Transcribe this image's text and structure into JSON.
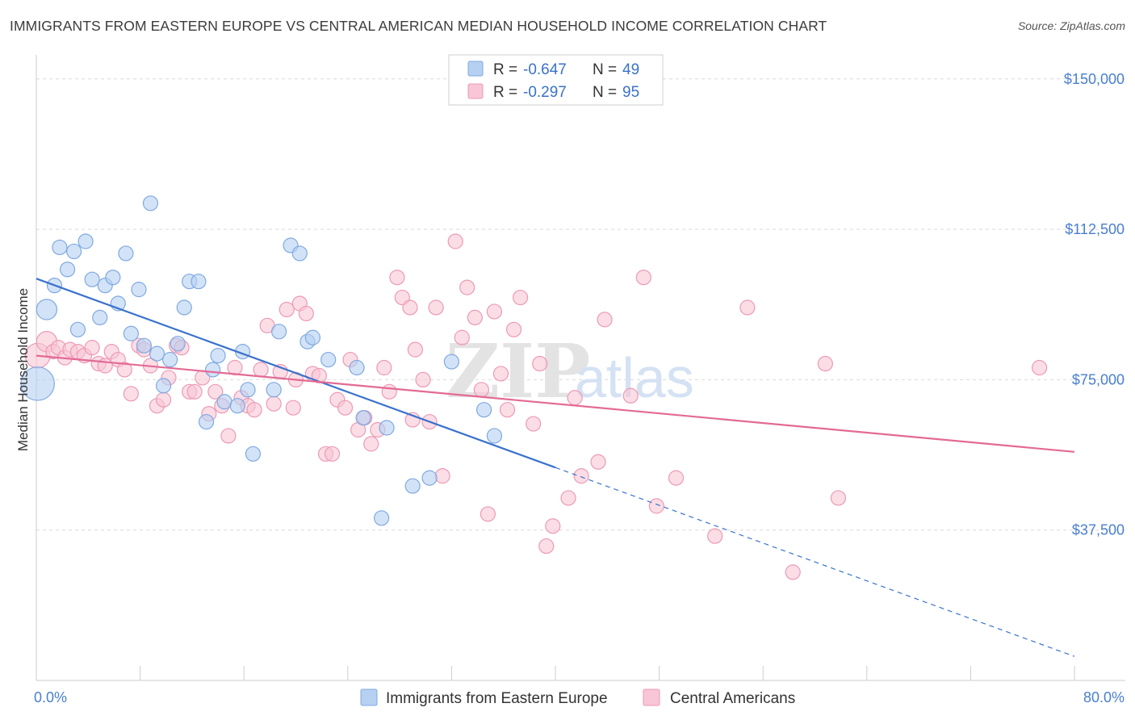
{
  "title": "IMMIGRANTS FROM EASTERN EUROPE VS CENTRAL AMERICAN MEDIAN HOUSEHOLD INCOME CORRELATION CHART",
  "source": "Source: ZipAtlas.com",
  "watermark": {
    "zip": "ZIP",
    "atlas": "atlas"
  },
  "colors": {
    "blue_fill": "#b6d0f2",
    "blue_stroke": "#7fa9e0",
    "blue_line": "#3a72cc",
    "pink_fill": "#f8c6d6",
    "pink_stroke": "#ec9ab5",
    "pink_line": "#e36a95",
    "grid": "#d9d9d9",
    "axis_label": "#4a7fd0"
  },
  "legend": {
    "rows": [
      {
        "r_label": "R =",
        "r_value": "-0.647",
        "n_label": "N =",
        "n_value": "49"
      },
      {
        "r_label": "R =",
        "r_value": "-0.297",
        "n_label": "N =",
        "n_value": "95"
      }
    ]
  },
  "chart_data": {
    "type": "scatter",
    "title": "IMMIGRANTS FROM EASTERN EUROPE VS CENTRAL AMERICAN MEDIAN HOUSEHOLD INCOME CORRELATION CHART",
    "xlabel": "",
    "ylabel": "Median Household Income",
    "xlim": [
      0,
      80
    ],
    "ylim": [
      0,
      156000
    ],
    "x_tick_labels": [
      "0.0%",
      "80.0%"
    ],
    "x_tick_positions": [
      0,
      8,
      16,
      24,
      32,
      40,
      48,
      56,
      64,
      72,
      80
    ],
    "y_ticks": [
      37500,
      75000,
      112500,
      150000
    ],
    "y_tick_labels": [
      "$37,500",
      "$75,000",
      "$112,500",
      "$150,000"
    ],
    "grid": true,
    "series": [
      {
        "name": "Immigrants from Eastern Europe",
        "color": "blue",
        "points": [
          [
            0.1,
            74000,
            2.3
          ],
          [
            0.8,
            92500,
            1.4
          ],
          [
            1.4,
            98500,
            1.0
          ],
          [
            1.8,
            108000,
            1.0
          ],
          [
            2.4,
            102500,
            1.0
          ],
          [
            2.9,
            107000,
            1.0
          ],
          [
            3.2,
            87500,
            1.0
          ],
          [
            3.8,
            109500,
            1.0
          ],
          [
            4.3,
            100000,
            1.0
          ],
          [
            4.9,
            90500,
            1.0
          ],
          [
            5.3,
            98500,
            1.0
          ],
          [
            5.9,
            100500,
            1.0
          ],
          [
            6.3,
            94000,
            1.0
          ],
          [
            6.9,
            106500,
            1.0
          ],
          [
            7.3,
            86500,
            1.0
          ],
          [
            7.9,
            97500,
            1.0
          ],
          [
            8.3,
            83500,
            1.0
          ],
          [
            8.8,
            119000,
            1.0
          ],
          [
            9.3,
            81500,
            1.0
          ],
          [
            9.8,
            73500,
            1.0
          ],
          [
            10.3,
            80000,
            1.0
          ],
          [
            10.9,
            84000,
            1.0
          ],
          [
            11.4,
            93000,
            1.0
          ],
          [
            11.8,
            99500,
            1.0
          ],
          [
            12.5,
            99500,
            1.0
          ],
          [
            13.1,
            64500,
            1.0
          ],
          [
            13.6,
            77500,
            1.0
          ],
          [
            14.0,
            81000,
            1.0
          ],
          [
            14.5,
            69500,
            1.0
          ],
          [
            15.5,
            68500,
            1.0
          ],
          [
            15.9,
            82000,
            1.0
          ],
          [
            16.3,
            72500,
            1.0
          ],
          [
            16.7,
            56500,
            1.0
          ],
          [
            18.3,
            72500,
            1.0
          ],
          [
            18.7,
            87000,
            1.0
          ],
          [
            19.6,
            108500,
            1.0
          ],
          [
            20.3,
            106500,
            1.0
          ],
          [
            20.9,
            84500,
            1.0
          ],
          [
            21.3,
            85500,
            1.0
          ],
          [
            22.5,
            80000,
            1.0
          ],
          [
            24.7,
            78000,
            1.0
          ],
          [
            25.2,
            65500,
            1.0
          ],
          [
            26.6,
            40500,
            1.0
          ],
          [
            27.0,
            63000,
            1.0
          ],
          [
            29.0,
            48500,
            1.0
          ],
          [
            30.3,
            50500,
            1.0
          ],
          [
            32.0,
            79500,
            1.0
          ],
          [
            34.5,
            67500,
            1.0
          ],
          [
            35.3,
            61000,
            1.0
          ]
        ],
        "trend": {
          "x0": 0,
          "y0": 100200,
          "x1": 80,
          "y1": 6000,
          "solid_until_x": 40
        }
      },
      {
        "name": "Central Americans",
        "color": "pink",
        "points": [
          [
            0.1,
            81000,
            1.7
          ],
          [
            0.8,
            84500,
            1.4
          ],
          [
            1.3,
            82000,
            1.0
          ],
          [
            1.7,
            83000,
            1.0
          ],
          [
            2.2,
            80500,
            1.0
          ],
          [
            2.6,
            82500,
            1.0
          ],
          [
            3.2,
            82000,
            1.0
          ],
          [
            3.7,
            81000,
            1.0
          ],
          [
            4.3,
            83000,
            1.0
          ],
          [
            4.8,
            79000,
            1.0
          ],
          [
            5.3,
            78500,
            1.0
          ],
          [
            5.8,
            82000,
            1.0
          ],
          [
            6.3,
            80000,
            1.0
          ],
          [
            6.8,
            77500,
            1.0
          ],
          [
            7.3,
            71500,
            1.0
          ],
          [
            7.9,
            83500,
            1.0
          ],
          [
            8.3,
            82500,
            1.0
          ],
          [
            8.8,
            78500,
            1.0
          ],
          [
            9.3,
            68500,
            1.0
          ],
          [
            9.8,
            70000,
            1.0
          ],
          [
            10.2,
            75500,
            1.0
          ],
          [
            10.8,
            83500,
            1.0
          ],
          [
            11.2,
            83000,
            1.0
          ],
          [
            11.8,
            72000,
            1.0
          ],
          [
            12.2,
            72000,
            1.0
          ],
          [
            12.8,
            75500,
            1.0
          ],
          [
            13.3,
            66500,
            1.0
          ],
          [
            13.8,
            72000,
            1.0
          ],
          [
            14.3,
            68500,
            1.0
          ],
          [
            14.8,
            61000,
            1.0
          ],
          [
            15.3,
            78000,
            1.0
          ],
          [
            15.8,
            70500,
            1.0
          ],
          [
            16.3,
            68500,
            1.0
          ],
          [
            16.8,
            67500,
            1.0
          ],
          [
            17.3,
            77500,
            1.0
          ],
          [
            17.8,
            88500,
            1.0
          ],
          [
            18.3,
            69000,
            1.0
          ],
          [
            18.8,
            77000,
            1.0
          ],
          [
            19.3,
            92500,
            1.0
          ],
          [
            19.8,
            68000,
            1.0
          ],
          [
            20.3,
            94000,
            1.0
          ],
          [
            20.8,
            91500,
            1.0
          ],
          [
            21.3,
            76500,
            1.0
          ],
          [
            21.8,
            76000,
            1.0
          ],
          [
            22.3,
            56500,
            1.0
          ],
          [
            22.8,
            56500,
            1.0
          ],
          [
            23.2,
            70000,
            1.0
          ],
          [
            23.8,
            68000,
            1.0
          ],
          [
            24.2,
            80000,
            1.0
          ],
          [
            24.8,
            62500,
            1.0
          ],
          [
            25.3,
            65500,
            1.0
          ],
          [
            25.8,
            59000,
            1.0
          ],
          [
            26.3,
            62500,
            1.0
          ],
          [
            26.8,
            78000,
            1.0
          ],
          [
            27.2,
            72000,
            1.0
          ],
          [
            27.8,
            100500,
            1.0
          ],
          [
            28.2,
            95500,
            1.0
          ],
          [
            28.8,
            93000,
            1.0
          ],
          [
            29.2,
            82500,
            1.0
          ],
          [
            29.8,
            75000,
            1.0
          ],
          [
            30.3,
            64500,
            1.0
          ],
          [
            30.8,
            93000,
            1.0
          ],
          [
            31.3,
            51000,
            1.0
          ],
          [
            32.3,
            109500,
            1.0
          ],
          [
            32.8,
            85500,
            1.0
          ],
          [
            33.2,
            98000,
            1.0
          ],
          [
            33.8,
            90500,
            1.0
          ],
          [
            34.3,
            72500,
            1.0
          ],
          [
            34.8,
            41500,
            1.0
          ],
          [
            35.3,
            92000,
            1.0
          ],
          [
            35.8,
            76500,
            1.0
          ],
          [
            36.3,
            67500,
            1.0
          ],
          [
            36.8,
            87500,
            1.0
          ],
          [
            37.3,
            95500,
            1.0
          ],
          [
            38.3,
            64000,
            1.0
          ],
          [
            38.8,
            79000,
            1.0
          ],
          [
            39.3,
            33500,
            1.0
          ],
          [
            39.8,
            38500,
            1.0
          ],
          [
            41.0,
            45500,
            1.0
          ],
          [
            41.5,
            70500,
            1.0
          ],
          [
            42.0,
            51000,
            1.0
          ],
          [
            43.3,
            54500,
            1.0
          ],
          [
            43.8,
            90000,
            1.0
          ],
          [
            45.8,
            71000,
            1.0
          ],
          [
            46.8,
            100500,
            1.0
          ],
          [
            47.8,
            43500,
            1.0
          ],
          [
            49.3,
            50500,
            1.0
          ],
          [
            52.3,
            36000,
            1.0
          ],
          [
            54.8,
            93000,
            1.0
          ],
          [
            58.3,
            27000,
            1.0
          ],
          [
            60.8,
            79000,
            1.0
          ],
          [
            61.8,
            45500,
            1.0
          ],
          [
            77.3,
            78000,
            1.0
          ],
          [
            29.0,
            65000,
            1.0
          ],
          [
            20.0,
            75000,
            1.0
          ]
        ],
        "trend": {
          "x0": 0,
          "y0": 81000,
          "x1": 80,
          "y1": 57000
        }
      }
    ]
  }
}
